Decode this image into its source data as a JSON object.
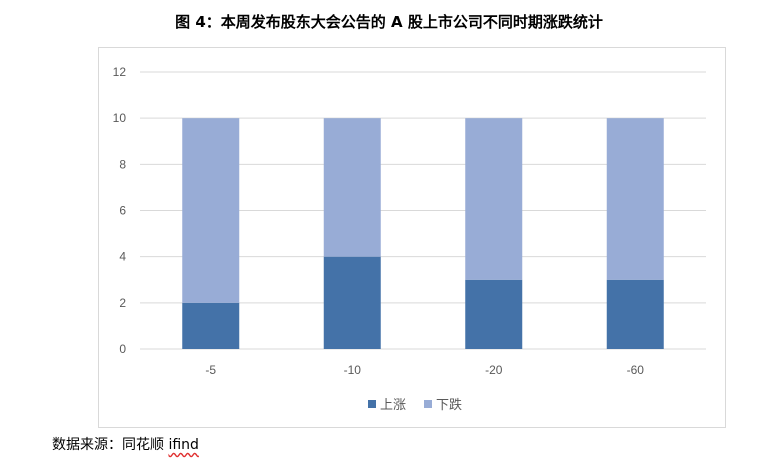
{
  "title": "图 4：本周发布股东大会公告的 A 股上市公司不同时期涨跌统计",
  "source": {
    "prefix": "数据来源：同花顺 ",
    "brand": "ifind"
  },
  "chart_data": {
    "type": "bar",
    "stacked": true,
    "categories": [
      "-5",
      "-10",
      "-20",
      "-60"
    ],
    "series": [
      {
        "name": "上涨",
        "values": [
          2,
          4,
          3,
          3
        ],
        "color": "#4472a8"
      },
      {
        "name": "下跌",
        "values": [
          8,
          6,
          7,
          7
        ],
        "color": "#98acd6"
      }
    ],
    "ylim": [
      0,
      12
    ],
    "yticks": [
      0,
      2,
      4,
      6,
      8,
      10,
      12
    ],
    "grid": true,
    "legend": "bottom"
  }
}
